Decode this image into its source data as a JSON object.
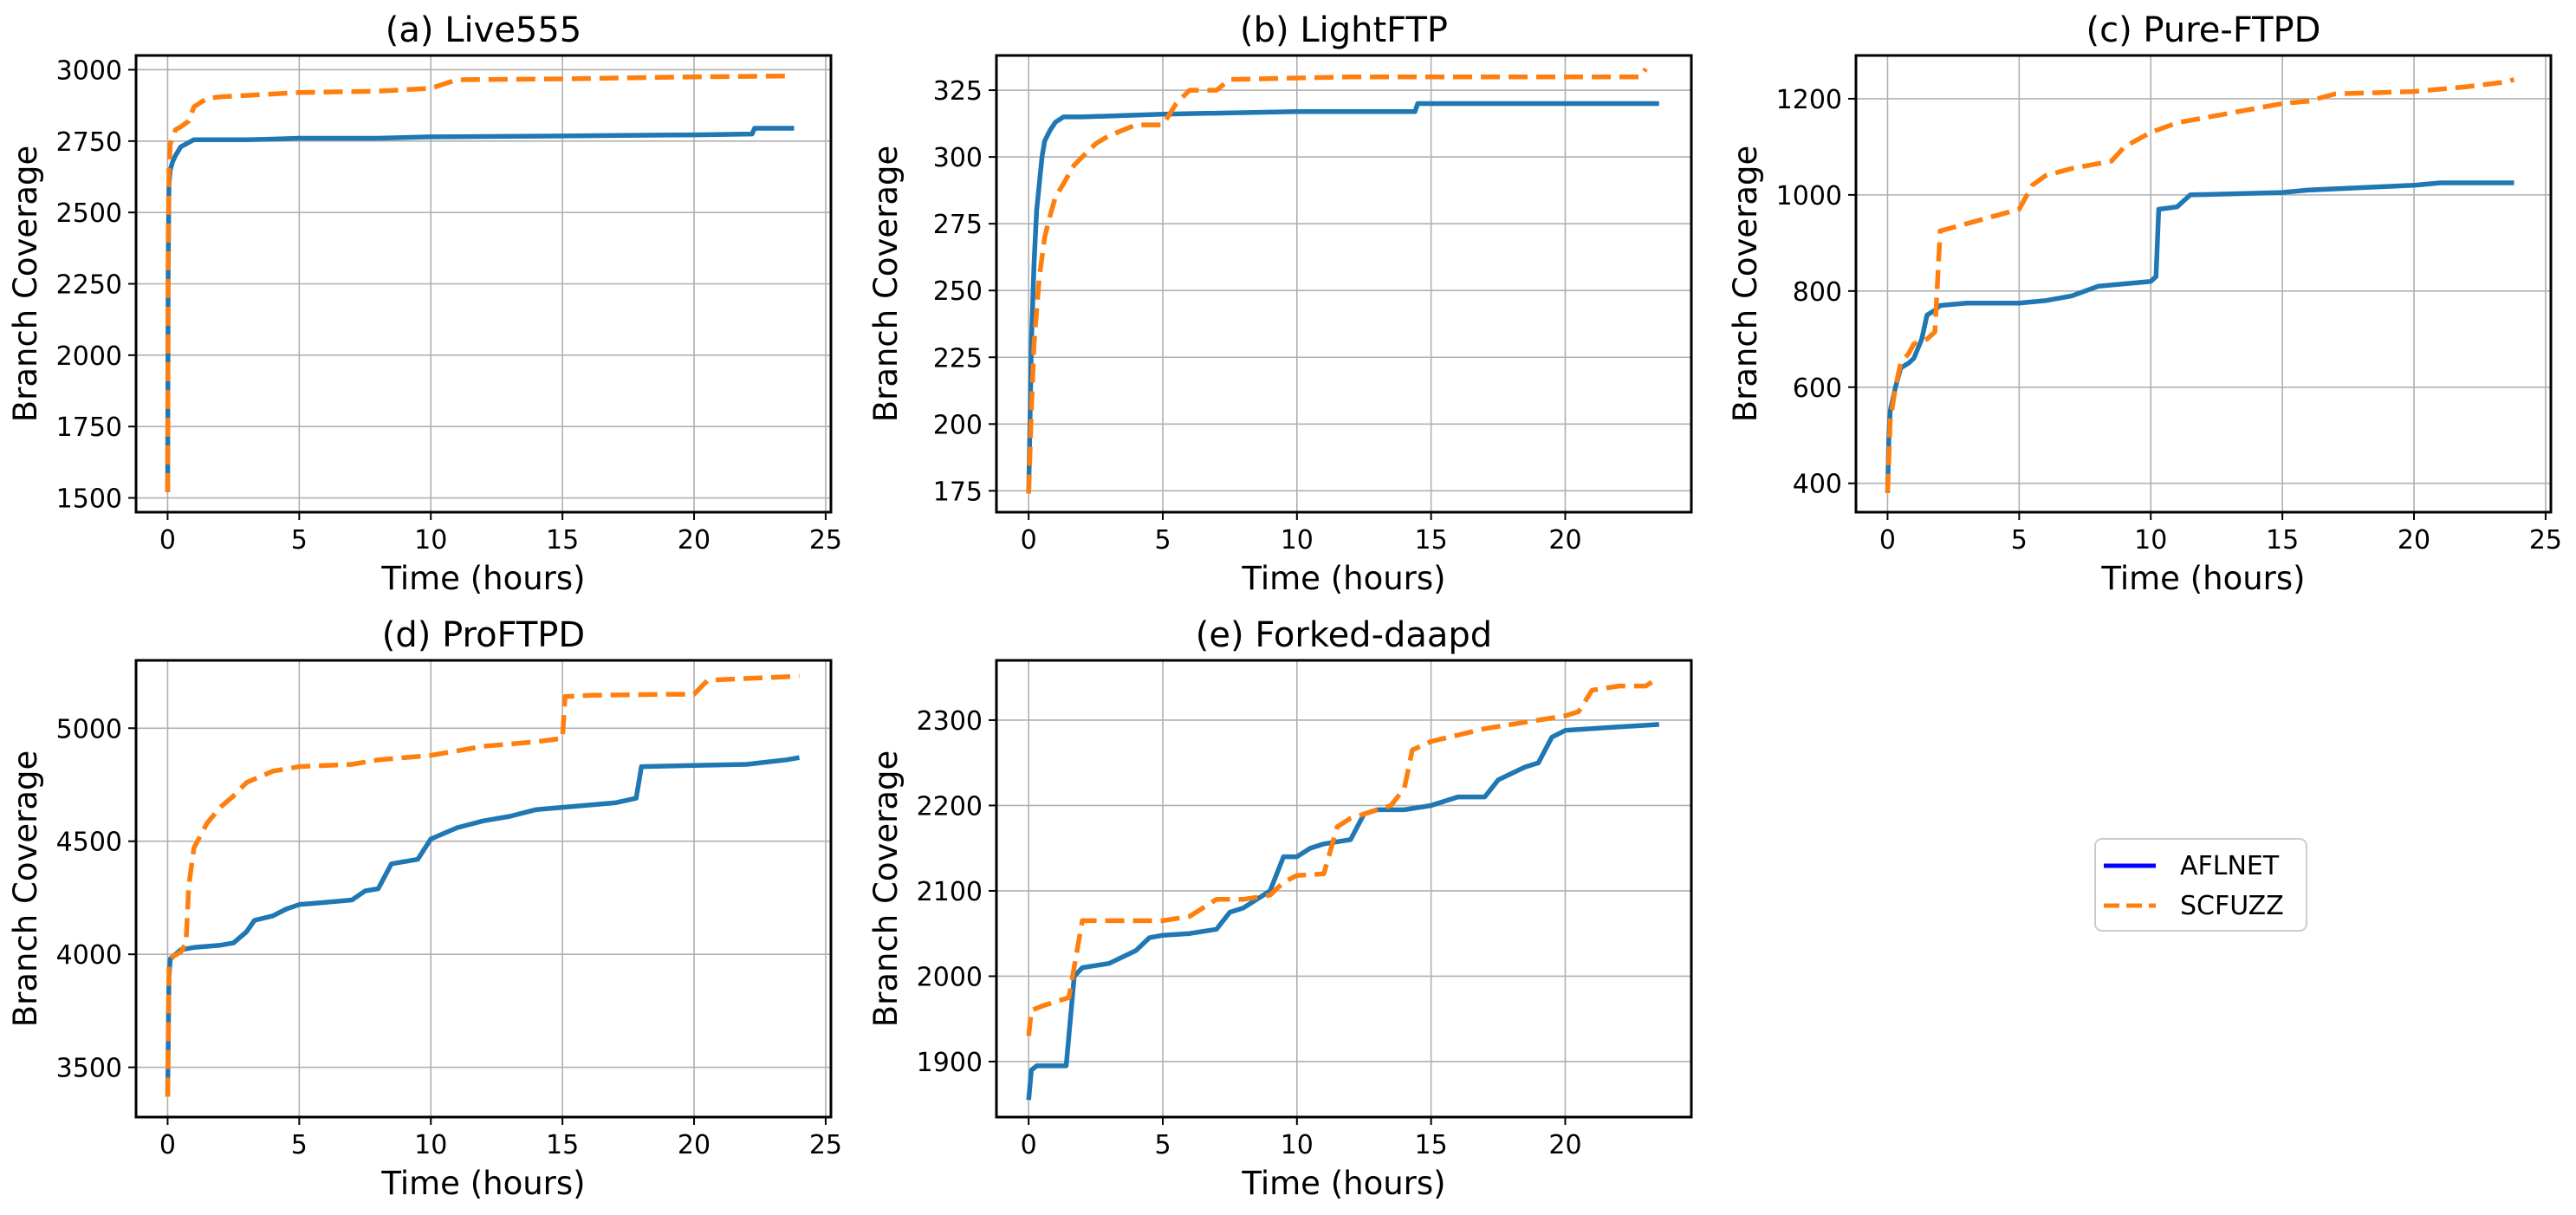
{
  "chart_data": [
    {
      "type": "line",
      "title": "(a) Live555",
      "xlabel": "Time (hours)",
      "ylabel": "Branch Coverage",
      "xlim": [
        -1.2,
        25.2
      ],
      "ylim": [
        1450,
        3050
      ],
      "xticks": [
        0,
        5,
        10,
        15,
        20,
        25
      ],
      "yticks": [
        1500,
        1750,
        2000,
        2250,
        2500,
        2750,
        3000
      ],
      "grid": true,
      "series": [
        {
          "name": "AFLNET",
          "x": [
            0,
            0.02,
            0.05,
            0.1,
            0.2,
            0.3,
            0.5,
            0.8,
            1,
            2,
            3,
            4,
            5,
            8,
            10,
            15,
            20,
            22.2,
            22.3,
            23.8
          ],
          "y": [
            1520,
            2300,
            2600,
            2650,
            2680,
            2700,
            2730,
            2745,
            2755,
            2755,
            2755,
            2757,
            2760,
            2760,
            2765,
            2768,
            2772,
            2775,
            2795,
            2795
          ]
        },
        {
          "name": "SCFUZZ",
          "x": [
            0,
            0.02,
            0.05,
            0.1,
            0.3,
            0.5,
            0.8,
            1,
            1.5,
            2,
            3,
            5,
            8,
            10,
            10.5,
            11,
            15,
            20,
            23.5
          ],
          "y": [
            1520,
            2400,
            2650,
            2740,
            2790,
            2800,
            2820,
            2870,
            2900,
            2905,
            2910,
            2920,
            2925,
            2935,
            2950,
            2965,
            2968,
            2975,
            2978
          ]
        }
      ]
    },
    {
      "type": "line",
      "title": "(b) LightFTP",
      "xlabel": "Time (hours)",
      "ylabel": "Branch Coverage",
      "xlim": [
        -1.2,
        24.7
      ],
      "ylim": [
        167,
        338
      ],
      "xticks": [
        0,
        5,
        10,
        15,
        20
      ],
      "yticks": [
        175,
        200,
        225,
        250,
        275,
        300,
        325
      ],
      "grid": true,
      "series": [
        {
          "name": "AFLNET",
          "x": [
            0,
            0.05,
            0.1,
            0.2,
            0.3,
            0.4,
            0.5,
            0.6,
            0.8,
            1,
            1.3,
            2,
            5,
            10,
            14.4,
            14.5,
            23.5
          ],
          "y": [
            174,
            200,
            230,
            260,
            280,
            290,
            300,
            306,
            310,
            313,
            315,
            315,
            316,
            317,
            317,
            320,
            320
          ]
        },
        {
          "name": "SCFUZZ",
          "x": [
            0,
            0.1,
            0.2,
            0.4,
            0.6,
            0.8,
            1,
            1.3,
            1.7,
            2,
            2.5,
            3,
            4,
            5,
            5.5,
            6,
            7,
            7.5,
            12,
            20,
            22.8,
            23
          ],
          "y": [
            174,
            205,
            230,
            255,
            270,
            278,
            285,
            290,
            297,
            300,
            305,
            308,
            312,
            312,
            320,
            325,
            325,
            329,
            330,
            330,
            330,
            333
          ]
        }
      ]
    },
    {
      "type": "line",
      "title": "(c) Pure-FTPD",
      "xlabel": "Time (hours)",
      "ylabel": "Branch Coverage",
      "xlim": [
        -1.2,
        25.2
      ],
      "ylim": [
        340,
        1290
      ],
      "xticks": [
        0,
        5,
        10,
        15,
        20,
        25
      ],
      "yticks": [
        400,
        600,
        800,
        1000,
        1200
      ],
      "grid": true,
      "series": [
        {
          "name": "AFLNET",
          "x": [
            0,
            0.05,
            0.1,
            0.3,
            0.5,
            0.8,
            1,
            1.3,
            1.5,
            1.8,
            2,
            3,
            5,
            6,
            7,
            8,
            9,
            10,
            10.2,
            10.3,
            11,
            11.5,
            15,
            16,
            20,
            21,
            23.8
          ],
          "y": [
            380,
            500,
            550,
            600,
            640,
            650,
            660,
            700,
            750,
            760,
            770,
            775,
            775,
            780,
            790,
            810,
            815,
            820,
            830,
            970,
            975,
            1000,
            1005,
            1010,
            1020,
            1025,
            1025
          ]
        },
        {
          "name": "SCFUZZ",
          "x": [
            0,
            0.1,
            0.3,
            0.5,
            0.8,
            1,
            1.5,
            1.8,
            2,
            3,
            4,
            5,
            5.5,
            6,
            7,
            8,
            8.5,
            9,
            10,
            11,
            12,
            13,
            14,
            15,
            16,
            17,
            20,
            22,
            23.5,
            23.8
          ],
          "y": [
            380,
            530,
            600,
            650,
            670,
            690,
            700,
            715,
            925,
            940,
            955,
            970,
            1020,
            1040,
            1055,
            1065,
            1070,
            1100,
            1130,
            1150,
            1160,
            1170,
            1180,
            1190,
            1195,
            1210,
            1215,
            1225,
            1235,
            1240
          ]
        }
      ]
    },
    {
      "type": "line",
      "title": "(d) ProFTPD",
      "xlabel": "Time (hours)",
      "ylabel": "Branch Coverage",
      "xlim": [
        -1.2,
        25.2
      ],
      "ylim": [
        3280,
        5300
      ],
      "xticks": [
        0,
        5,
        10,
        15,
        20,
        25
      ],
      "yticks": [
        3500,
        4000,
        4500,
        5000
      ],
      "grid": true,
      "series": [
        {
          "name": "AFLNET",
          "x": [
            0,
            0.05,
            0.1,
            0.3,
            0.5,
            1,
            2,
            2.5,
            3,
            3.3,
            4,
            4.5,
            5,
            6,
            7,
            7.5,
            8,
            8.5,
            9,
            9.5,
            10,
            11,
            11.5,
            12,
            13,
            14,
            15,
            16,
            17,
            17.8,
            18,
            20,
            22,
            23.5,
            24
          ],
          "y": [
            3370,
            3900,
            3980,
            4000,
            4020,
            4030,
            4040,
            4050,
            4100,
            4150,
            4170,
            4200,
            4220,
            4230,
            4240,
            4280,
            4290,
            4400,
            4410,
            4420,
            4510,
            4560,
            4575,
            4590,
            4610,
            4640,
            4650,
            4660,
            4670,
            4690,
            4830,
            4835,
            4840,
            4860,
            4870
          ]
        },
        {
          "name": "SCFUZZ",
          "x": [
            0,
            0.05,
            0.2,
            0.5,
            0.7,
            0.8,
            1,
            1.5,
            2,
            2.5,
            3,
            4,
            5,
            7,
            8,
            9,
            10,
            11,
            12,
            13,
            14,
            15,
            15.1,
            16,
            19,
            20,
            20.5,
            21,
            22,
            23,
            24
          ],
          "y": [
            3370,
            3950,
            3990,
            4010,
            4050,
            4300,
            4470,
            4580,
            4650,
            4700,
            4760,
            4810,
            4830,
            4840,
            4860,
            4870,
            4880,
            4900,
            4920,
            4930,
            4940,
            4955,
            5140,
            5145,
            5150,
            5150,
            5210,
            5215,
            5220,
            5225,
            5230
          ]
        }
      ]
    },
    {
      "type": "line",
      "title": "(e) Forked-daapd",
      "xlabel": "Time (hours)",
      "ylabel": "Branch Coverage",
      "xlim": [
        -1.2,
        24.7
      ],
      "ylim": [
        1835,
        2370
      ],
      "xticks": [
        0,
        5,
        10,
        15,
        20
      ],
      "yticks": [
        1900,
        2000,
        2100,
        2200,
        2300
      ],
      "grid": true,
      "series": [
        {
          "name": "AFLNET",
          "x": [
            0,
            0.1,
            0.3,
            1.4,
            1.5,
            1.7,
            2,
            3,
            4,
            4.5,
            5,
            6,
            7,
            7.5,
            8,
            9,
            9.5,
            10,
            10.5,
            11,
            12,
            12.5,
            13,
            14,
            15,
            15.5,
            16,
            17,
            17.5,
            18.5,
            19,
            19.5,
            20,
            21,
            22,
            23.5
          ],
          "y": [
            1855,
            1890,
            1895,
            1895,
            1930,
            2000,
            2010,
            2015,
            2030,
            2045,
            2048,
            2050,
            2055,
            2075,
            2080,
            2100,
            2140,
            2140,
            2150,
            2155,
            2160,
            2190,
            2195,
            2195,
            2200,
            2205,
            2210,
            2210,
            2230,
            2245,
            2250,
            2280,
            2288,
            2290,
            2292,
            2295
          ]
        },
        {
          "name": "SCFUZZ",
          "x": [
            0,
            0.1,
            0.5,
            1,
            1.5,
            2,
            3,
            5,
            6,
            7,
            8,
            9,
            9.5,
            10,
            11,
            11.5,
            12,
            13,
            13.5,
            14,
            14.3,
            15,
            17,
            18,
            20,
            20.5,
            21,
            22,
            23,
            23.5
          ],
          "y": [
            1930,
            1960,
            1965,
            1970,
            1975,
            2065,
            2065,
            2065,
            2070,
            2090,
            2090,
            2095,
            2110,
            2118,
            2120,
            2175,
            2185,
            2195,
            2200,
            2220,
            2265,
            2275,
            2290,
            2295,
            2305,
            2310,
            2335,
            2340,
            2340,
            2350
          ]
        }
      ]
    }
  ],
  "legend": {
    "position": "right",
    "entries": [
      {
        "label": "AFLNET",
        "color": "#0000ff",
        "style": "solid"
      },
      {
        "label": "SCFUZZ",
        "color": "#ff7f0e",
        "style": "dashed"
      }
    ]
  },
  "colors": {
    "aflnet": "#1f77b4",
    "scfuzz": "#ff7f0e",
    "legend_aflnet": "#0000ff"
  }
}
